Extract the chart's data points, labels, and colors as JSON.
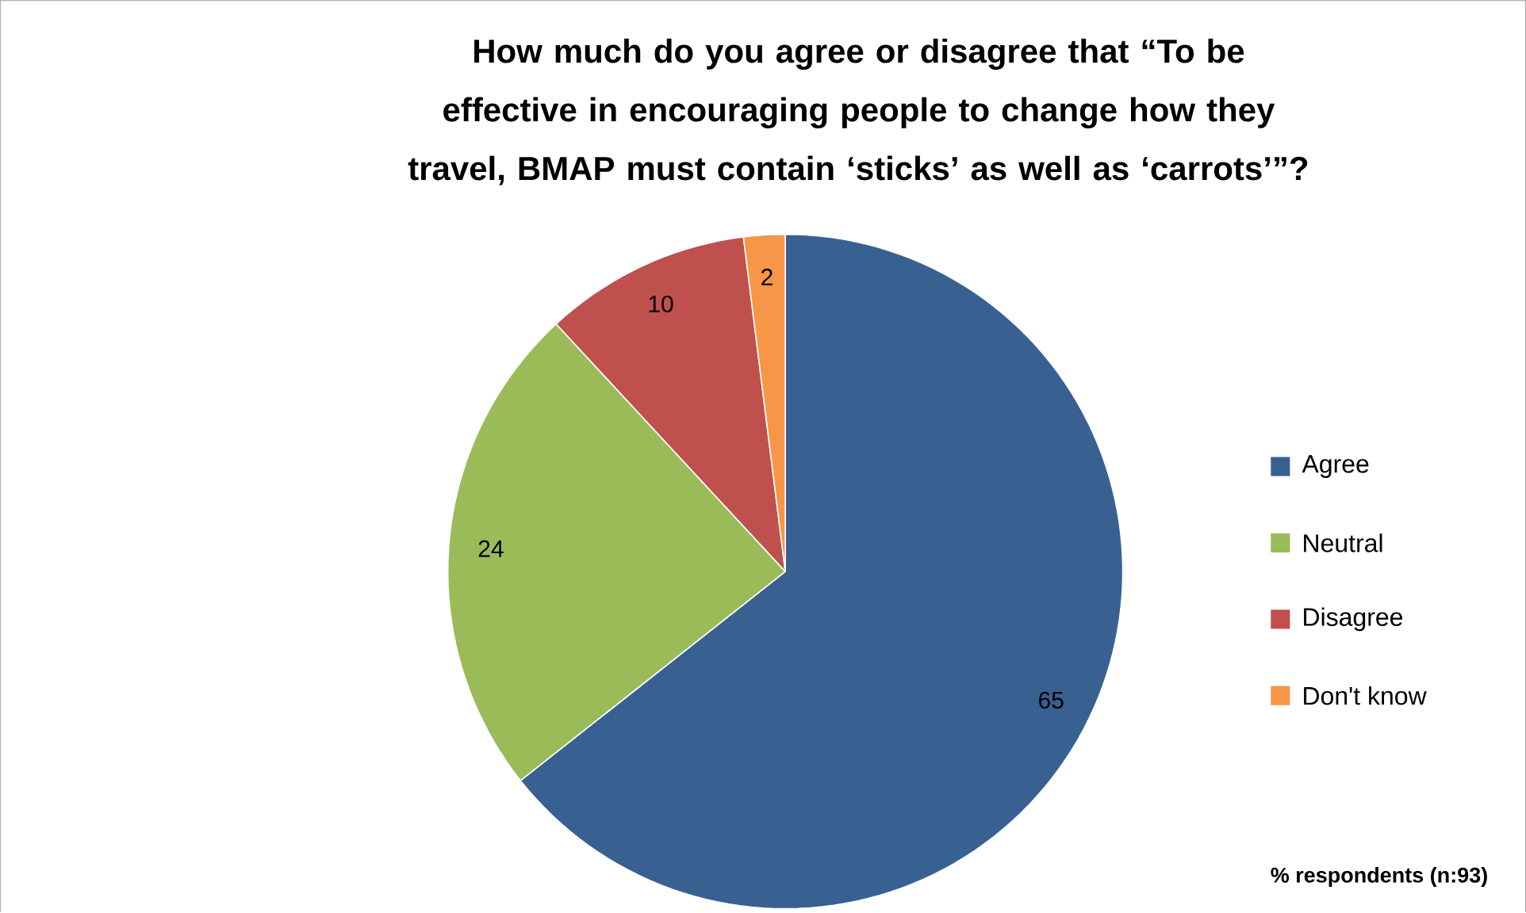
{
  "chart_data": {
    "type": "pie",
    "title": "How much do you agree or disagree that “To be effective in encouraging people to change how they travel, BMAP must contain ‘sticks’ as well as ‘carrots’”?",
    "categories": [
      "Agree",
      "Neutral",
      "Disagree",
      "Don't know"
    ],
    "values": [
      65,
      24,
      10,
      2
    ],
    "colors": [
      "#386192",
      "#9bbb59",
      "#c0504d",
      "#f79646"
    ],
    "data_labels": true,
    "legend": "right",
    "annotations": [
      "% respondents (n:93)"
    ]
  }
}
